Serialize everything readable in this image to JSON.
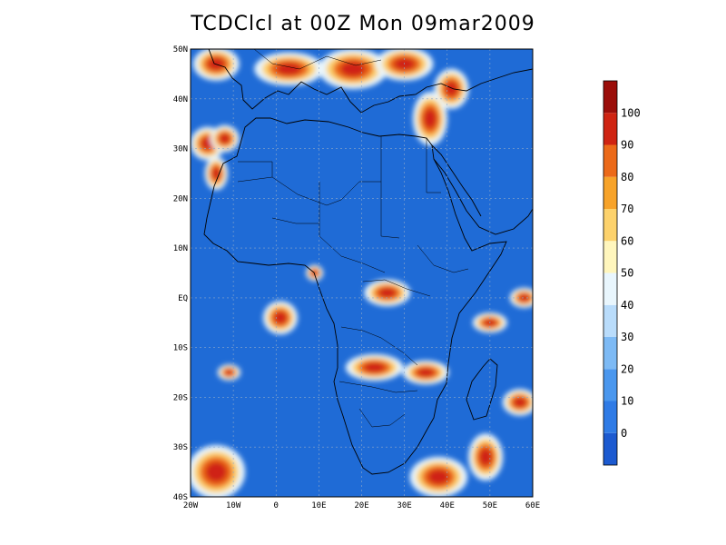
{
  "title": "TCDClcl at 00Z Mon 09mar2009",
  "map": {
    "region": "Africa",
    "lon_range": [
      -20,
      60
    ],
    "lat_range": [
      -40,
      50
    ],
    "grid_lines": "dashed",
    "lat_labels": [
      "50N",
      "40N",
      "30N",
      "20N",
      "10N",
      "EQ",
      "10S",
      "20S",
      "30S",
      "40S"
    ],
    "lon_labels": [
      "20W",
      "10W",
      "0",
      "10E",
      "20E",
      "30E",
      "40E",
      "50E",
      "60E"
    ],
    "background_color": "#1f6bd6",
    "coastline_color": "#000000"
  },
  "colorbar": {
    "labels": [
      "0",
      "10",
      "20",
      "30",
      "40",
      "50",
      "60",
      "70",
      "80",
      "90",
      "100"
    ],
    "colors": [
      "#1c5ad0",
      "#2f7be6",
      "#4a97ee",
      "#7dbaf5",
      "#b9dcfb",
      "#e9f6fd",
      "#fff6bd",
      "#fdd26c",
      "#f7a32a",
      "#ec6a19",
      "#cf2412",
      "#9b0e0a"
    ]
  },
  "cloud_regions": [
    {
      "lon": -14,
      "lat": 47,
      "rx": 4,
      "ry": 2.5
    },
    {
      "lon": 3,
      "lat": 46,
      "rx": 6,
      "ry": 2.5
    },
    {
      "lon": 18,
      "lat": 46,
      "rx": 6,
      "ry": 3
    },
    {
      "lon": 30,
      "lat": 47,
      "rx": 5,
      "ry": 2.5
    },
    {
      "lon": 41,
      "lat": 42,
      "rx": 3,
      "ry": 3
    },
    {
      "lon": 36,
      "lat": 36,
      "rx": 3,
      "ry": 4
    },
    {
      "lon": -16,
      "lat": 31,
      "rx": 3,
      "ry": 2.5
    },
    {
      "lon": -12,
      "lat": 32,
      "rx": 2.5,
      "ry": 2
    },
    {
      "lon": -14,
      "lat": 25,
      "rx": 2,
      "ry": 2.5
    },
    {
      "lon": 9,
      "lat": 5,
      "rx": 1.5,
      "ry": 1.2
    },
    {
      "lon": 26,
      "lat": 1,
      "rx": 4,
      "ry": 2
    },
    {
      "lon": 1,
      "lat": -4,
      "rx": 3,
      "ry": 2.5
    },
    {
      "lon": 23,
      "lat": -14,
      "rx": 5,
      "ry": 2
    },
    {
      "lon": 35,
      "lat": -15,
      "rx": 4,
      "ry": 1.8
    },
    {
      "lon": -11,
      "lat": -15,
      "rx": 2,
      "ry": 1.2
    },
    {
      "lon": 50,
      "lat": -5,
      "rx": 3,
      "ry": 1.5
    },
    {
      "lon": 58,
      "lat": 0,
      "rx": 2.5,
      "ry": 1.5
    },
    {
      "lon": -14,
      "lat": -35,
      "rx": 5,
      "ry": 4
    },
    {
      "lon": 38,
      "lat": -36,
      "rx": 5,
      "ry": 3
    },
    {
      "lon": 49,
      "lat": -32,
      "rx": 3,
      "ry": 3.5
    },
    {
      "lon": 57,
      "lat": -21,
      "rx": 3,
      "ry": 2
    }
  ]
}
